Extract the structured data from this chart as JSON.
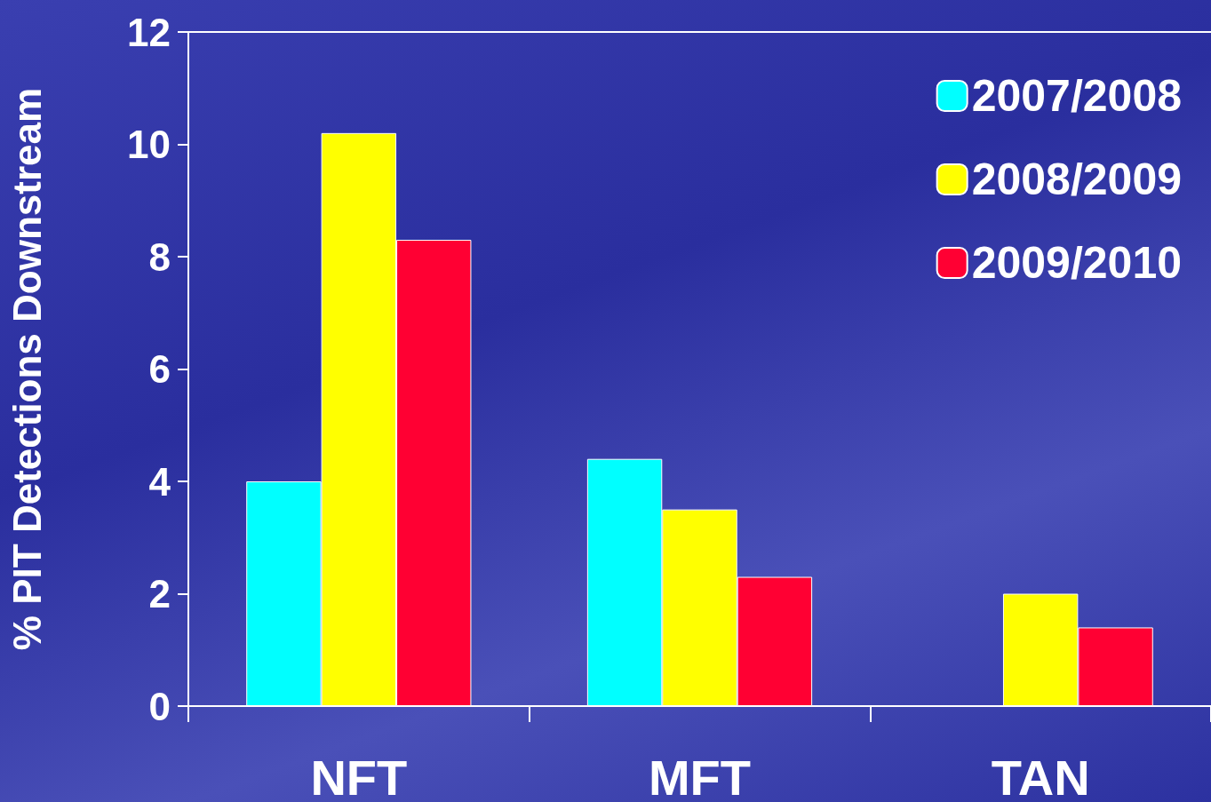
{
  "chart_data": {
    "type": "bar",
    "ylabel": "% PIT Detections Downstream",
    "categories": [
      "NFT",
      "MFT",
      "TAN"
    ],
    "series": [
      {
        "name": "2007/2008",
        "color": "#00ffff",
        "values": [
          4.0,
          4.4,
          null
        ]
      },
      {
        "name": "2008/2009",
        "color": "#ffff00",
        "values": [
          10.2,
          3.5,
          2.0
        ]
      },
      {
        "name": "2009/2010",
        "color": "#ff0033",
        "values": [
          8.3,
          2.3,
          1.4
        ]
      }
    ],
    "ylim": [
      0,
      12
    ],
    "yticks": [
      0,
      2,
      4,
      6,
      8,
      10,
      12
    ],
    "grid": false,
    "legend": "top right"
  }
}
